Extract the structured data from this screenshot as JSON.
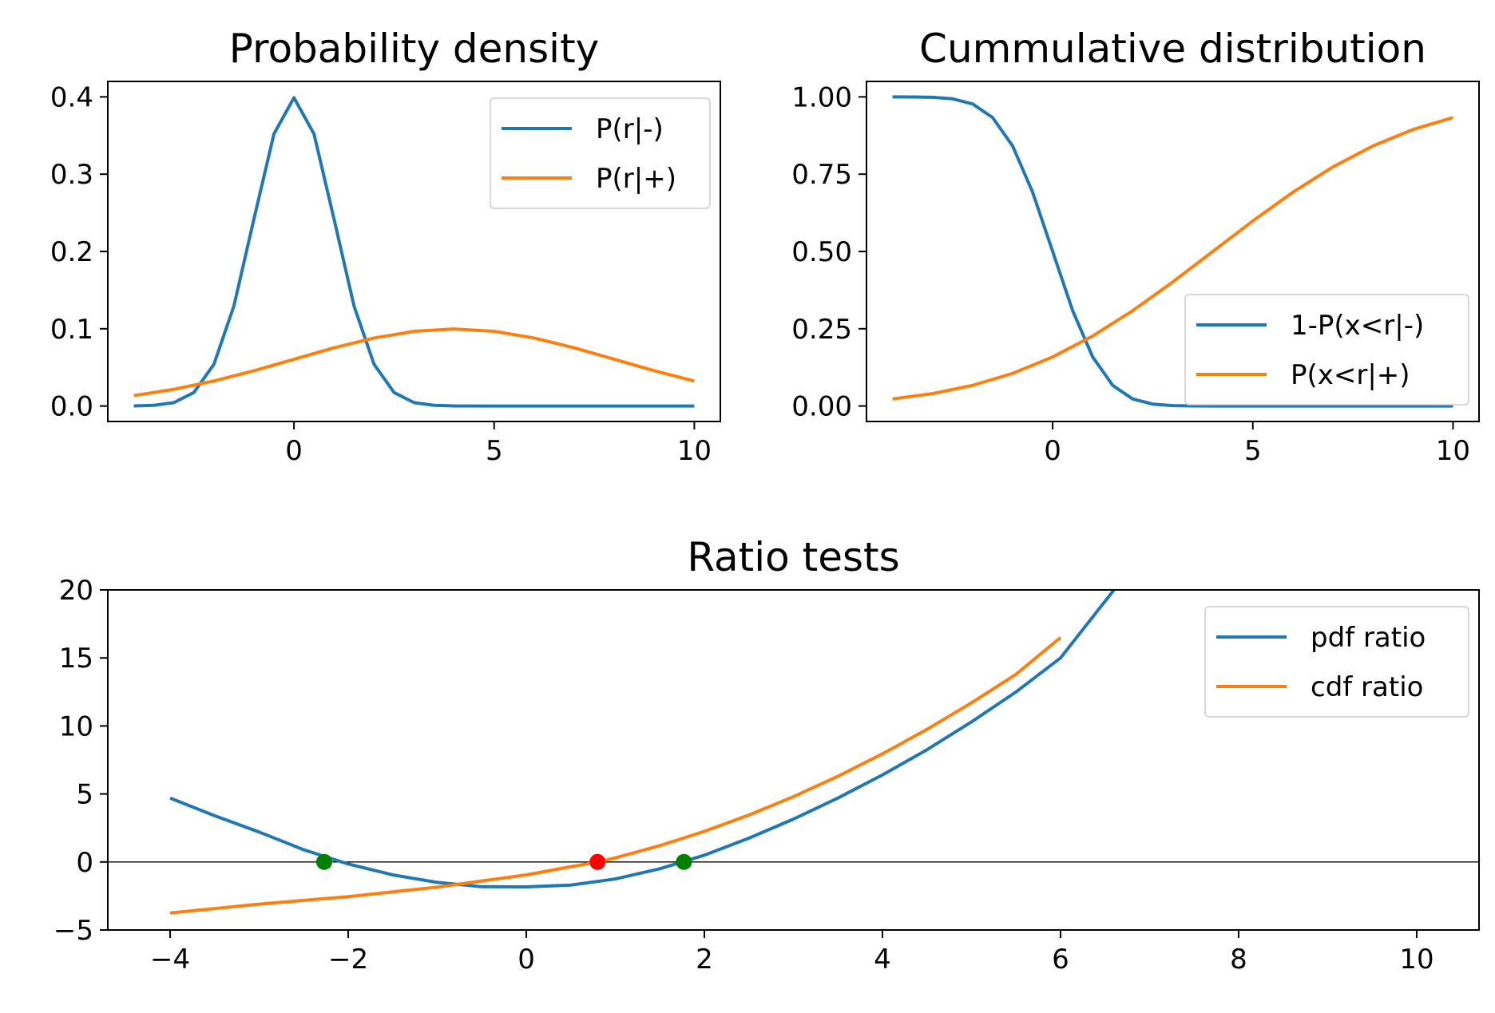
{
  "colors": {
    "series_blue": "#1f77b4",
    "series_orange": "#ff7f0e",
    "zero_point": "#008000",
    "cross_point": "#ff0000",
    "axes": "#000000",
    "legend_border": "#cccccc"
  },
  "chart_data": [
    {
      "id": "pdf",
      "type": "line",
      "title": "Probability density",
      "xlabel": "",
      "ylabel": "",
      "xlim": [
        -4.65,
        10.65
      ],
      "ylim": [
        -0.02,
        0.42
      ],
      "xticks": [
        0,
        5,
        10
      ],
      "yticks": [
        0.0,
        0.1,
        0.2,
        0.3,
        0.4
      ],
      "xtick_labels": [
        "0",
        "5",
        "10"
      ],
      "ytick_labels": [
        "0.0",
        "0.1",
        "0.2",
        "0.3",
        "0.4"
      ],
      "grid": false,
      "legend_position": "upper right",
      "series": [
        {
          "name": "P(r|-)",
          "color": "#1f77b4",
          "x": [
            -4,
            -3.5,
            -3,
            -2.5,
            -2,
            -1.5,
            -1,
            -0.5,
            0,
            0.5,
            1,
            1.5,
            2,
            2.5,
            3,
            3.5,
            4,
            5,
            6,
            7,
            8,
            9,
            10
          ],
          "y": [
            0.0001,
            0.0009,
            0.0044,
            0.0175,
            0.054,
            0.1295,
            0.242,
            0.3521,
            0.3989,
            0.3521,
            0.242,
            0.1295,
            0.054,
            0.0175,
            0.0044,
            0.0009,
            0.0001,
            0.0,
            0.0,
            0.0,
            0.0,
            0.0,
            0.0
          ]
        },
        {
          "name": "P(r|+)",
          "color": "#ff7f0e",
          "x": [
            -4,
            -3,
            -2,
            -1,
            0,
            1,
            2,
            3,
            4,
            5,
            6,
            7,
            8,
            9,
            10
          ],
          "y": [
            0.0135,
            0.0216,
            0.0324,
            0.0457,
            0.0605,
            0.0753,
            0.088,
            0.0967,
            0.0997,
            0.0967,
            0.088,
            0.0753,
            0.0605,
            0.0457,
            0.0324
          ]
        }
      ]
    },
    {
      "id": "cdf",
      "type": "line",
      "title": "Cummulative distribution",
      "xlabel": "",
      "ylabel": "",
      "xlim": [
        -4.65,
        10.65
      ],
      "ylim": [
        -0.05,
        1.05
      ],
      "xticks": [
        0,
        5,
        10
      ],
      "yticks": [
        0.0,
        0.25,
        0.5,
        0.75,
        1.0
      ],
      "xtick_labels": [
        "0",
        "5",
        "10"
      ],
      "ytick_labels": [
        "0.00",
        "0.25",
        "0.50",
        "0.75",
        "1.00"
      ],
      "grid": false,
      "legend_position": "lower right",
      "series": [
        {
          "name": "1-P(x<r|-)",
          "color": "#1f77b4",
          "x": [
            -4,
            -3.5,
            -3,
            -2.5,
            -2,
            -1.5,
            -1,
            -0.5,
            0,
            0.5,
            1,
            1.5,
            2,
            2.5,
            3,
            3.5,
            4,
            5,
            6,
            7,
            8,
            9,
            10
          ],
          "y": [
            1.0,
            0.9998,
            0.9987,
            0.9938,
            0.9772,
            0.9332,
            0.8413,
            0.6915,
            0.5,
            0.3085,
            0.1587,
            0.0668,
            0.0228,
            0.0062,
            0.0013,
            0.0002,
            0.0,
            0.0,
            0.0,
            0.0,
            0.0,
            0.0,
            0.0
          ]
        },
        {
          "name": "P(x<r|+)",
          "color": "#ff7f0e",
          "x": [
            -4,
            -3,
            -2,
            -1,
            0,
            1,
            2,
            3,
            4,
            5,
            6,
            7,
            8,
            9,
            10
          ],
          "y": [
            0.0228,
            0.0401,
            0.0668,
            0.1056,
            0.1587,
            0.2266,
            0.3085,
            0.4013,
            0.5,
            0.5987,
            0.6915,
            0.7734,
            0.8413,
            0.8944,
            0.9332
          ]
        }
      ]
    },
    {
      "id": "ratio",
      "type": "line",
      "title": "Ratio tests",
      "xlabel": "",
      "ylabel": "",
      "xlim": [
        -4.7,
        10.7
      ],
      "ylim": [
        -5,
        20
      ],
      "xticks": [
        -4,
        -2,
        0,
        2,
        4,
        6,
        8,
        10
      ],
      "yticks": [
        -5,
        0,
        5,
        10,
        15,
        20
      ],
      "xtick_labels": [
        "−4",
        "−2",
        "0",
        "2",
        "4",
        "6",
        "8",
        "10"
      ],
      "ytick_labels": [
        "−5",
        "0",
        "5",
        "10",
        "15",
        "20"
      ],
      "grid": false,
      "legend_position": "upper right",
      "hline_y": 0,
      "series": [
        {
          "name": "pdf ratio",
          "color": "#1f77b4",
          "x": [
            -4,
            -3.5,
            -3,
            -2.5,
            -2,
            -1.5,
            -1,
            -0.5,
            0,
            0.5,
            1,
            1.5,
            2,
            2.5,
            3,
            3.5,
            4,
            4.5,
            5,
            5.5,
            6,
            6.6
          ],
          "y": [
            4.7,
            3.4,
            2.2,
            0.9,
            -0.15,
            -0.95,
            -1.5,
            -1.82,
            -1.83,
            -1.7,
            -1.25,
            -0.5,
            0.5,
            1.75,
            3.15,
            4.7,
            6.4,
            8.25,
            10.3,
            12.5,
            15.0,
            20.0
          ]
        },
        {
          "name": "cdf ratio",
          "color": "#ff7f0e",
          "x": [
            -4,
            -3,
            -2,
            -1,
            -0.5,
            0,
            0.5,
            0.8,
            1,
            1.5,
            2,
            2.5,
            3,
            3.5,
            4,
            4.5,
            5,
            5.5,
            6.0
          ],
          "y": [
            -3.75,
            -3.1,
            -2.55,
            -1.85,
            -1.4,
            -0.95,
            -0.35,
            0.0,
            0.3,
            1.2,
            2.25,
            3.45,
            4.8,
            6.3,
            7.95,
            9.75,
            11.7,
            13.8,
            16.5
          ]
        }
      ],
      "markers": [
        {
          "x": -2.27,
          "y": 0,
          "color": "#008000"
        },
        {
          "x": 0.8,
          "y": 0,
          "color": "#ff0000"
        },
        {
          "x": 1.77,
          "y": 0,
          "color": "#008000"
        }
      ]
    }
  ]
}
